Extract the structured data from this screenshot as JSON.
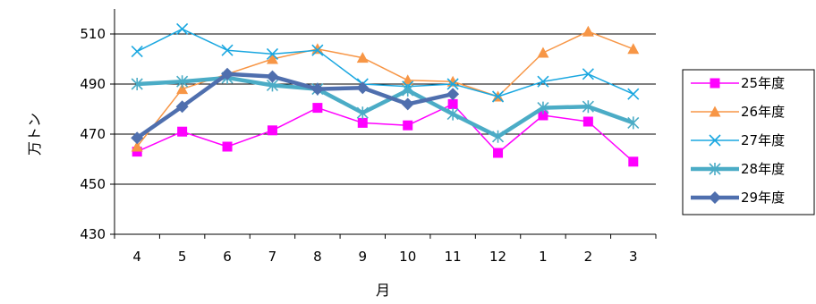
{
  "chart_data": {
    "type": "line",
    "title": "",
    "xlabel": "月",
    "ylabel": "万トン",
    "categories": [
      "4",
      "5",
      "6",
      "7",
      "8",
      "9",
      "10",
      "11",
      "12",
      "1",
      "2",
      "3"
    ],
    "ylim": [
      430,
      520
    ],
    "yticks": [
      430,
      450,
      470,
      490,
      510
    ],
    "grid": true,
    "legend_position": "right",
    "series": [
      {
        "name": "25年度",
        "color": "#ff00ff",
        "marker": "square",
        "width": 1.5,
        "values": [
          463,
          471,
          465,
          471.5,
          480.5,
          474.5,
          473.5,
          482,
          462.5,
          477.5,
          475,
          459
        ]
      },
      {
        "name": "26年度",
        "color": "#f79646",
        "marker": "triangle",
        "width": 1.5,
        "values": [
          465,
          488,
          494,
          500,
          504,
          500.5,
          491.5,
          491,
          485,
          502.5,
          511,
          504
        ]
      },
      {
        "name": "27年度",
        "color": "#1aa7e0",
        "marker": "x",
        "width": 1.5,
        "values": [
          503,
          512,
          503.5,
          502,
          503.5,
          490,
          489,
          490,
          485,
          491,
          494,
          486
        ]
      },
      {
        "name": "28年度",
        "color": "#4bacc6",
        "marker": "star",
        "width": 4.5,
        "values": [
          490,
          491,
          492.5,
          489.5,
          488,
          478.5,
          487.5,
          478,
          469,
          480.5,
          481,
          474.5
        ]
      },
      {
        "name": "29年度",
        "color": "#4f6fae",
        "marker": "diamond",
        "width": 4.5,
        "values": [
          468.5,
          481,
          494,
          493,
          488,
          488.5,
          482,
          486,
          null,
          null,
          null,
          null
        ]
      }
    ]
  }
}
